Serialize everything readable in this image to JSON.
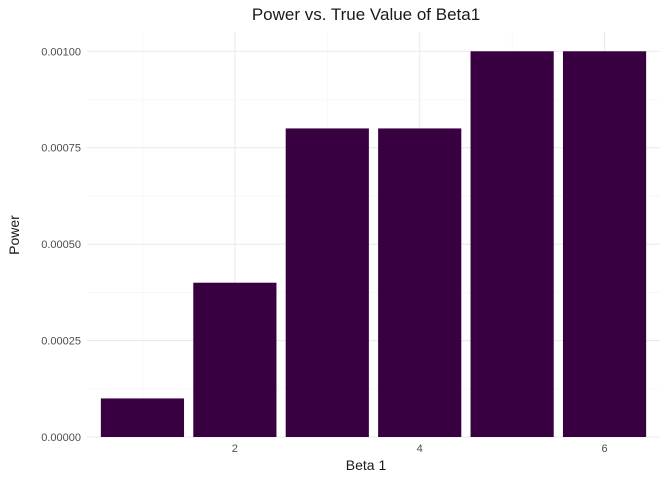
{
  "chart_data": {
    "type": "bar",
    "title": "Power vs. True Value of Beta1",
    "xlabel": "Beta 1",
    "ylabel": "Power",
    "x": [
      1,
      2,
      3,
      4,
      5,
      6
    ],
    "values": [
      0.0001,
      0.0004,
      0.0008,
      0.0008,
      0.001,
      0.001
    ],
    "xlim": [
      0.4,
      6.6
    ],
    "ylim": [
      0,
      0.00105
    ],
    "x_ticks": [
      2,
      4,
      6
    ],
    "x_tick_labels": [
      "2",
      "4",
      "6"
    ],
    "y_ticks": [
      0,
      0.00025,
      0.0005,
      0.00075,
      0.001
    ],
    "y_tick_labels": [
      "0.00000",
      "0.00025",
      "0.00050",
      "0.00075",
      "0.00100"
    ],
    "bar_color": "#380040",
    "grid": true,
    "legend": "none"
  }
}
